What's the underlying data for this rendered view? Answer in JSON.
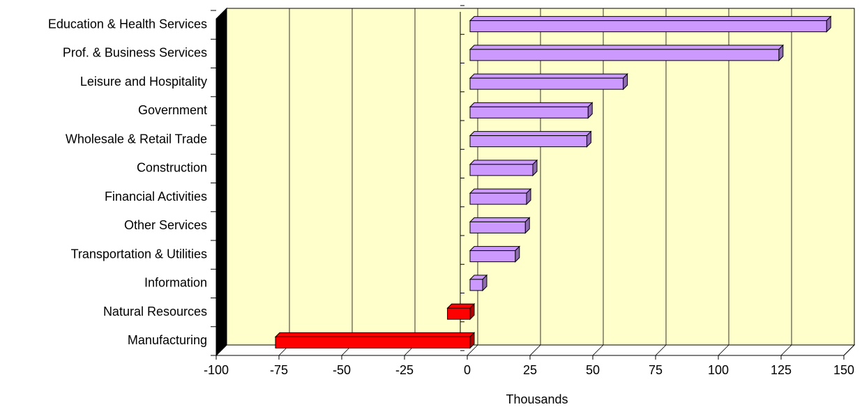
{
  "chart_data": {
    "type": "bar3d-horizontal",
    "x_label": "Thousands",
    "categories": [
      "Education & Health Services",
      "Prof. & Business Services",
      "Leisure and Hospitality",
      "Government",
      "Wholesale & Retail Trade",
      "Construction",
      "Financial Activities",
      "Other Services",
      "Transportation & Utilities",
      "Information",
      "Natural Resources",
      "Manufacturing"
    ],
    "values": [
      142,
      123,
      61,
      47,
      46.5,
      25,
      22.5,
      22,
      18,
      5,
      -9,
      -77.5
    ],
    "colors": [
      "#cc99ff",
      "#cc99ff",
      "#cc99ff",
      "#cc99ff",
      "#cc99ff",
      "#cc99ff",
      "#cc99ff",
      "#cc99ff",
      "#cc99ff",
      "#cc99ff",
      "#ff0000",
      "#ff0000"
    ],
    "xlim": [
      -100,
      150
    ],
    "xticks": [
      -100,
      -75,
      -50,
      -25,
      0,
      25,
      50,
      75,
      100,
      125,
      150
    ],
    "grid": true,
    "background": "#ffffcc"
  }
}
